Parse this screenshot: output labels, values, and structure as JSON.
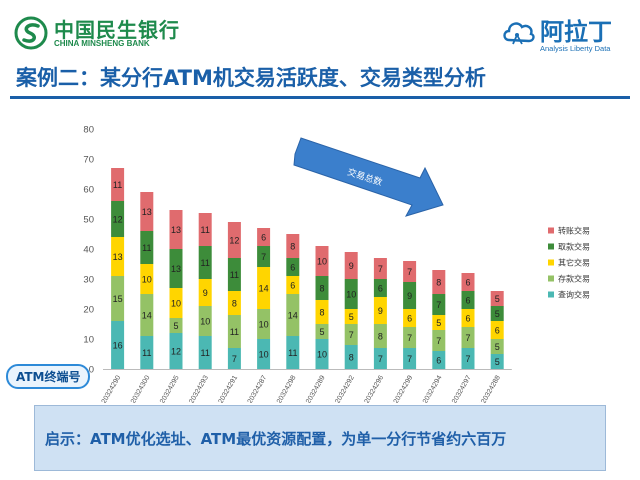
{
  "header": {
    "bank_name_cn": "中国民生银行",
    "bank_name_en": "CHINA MINSHENG BANK",
    "brand_name": "阿拉丁",
    "brand_sub": "Analysis Liberty Data",
    "page_title": "案例二：某分行ATM机交易活跃度、交易类型分析"
  },
  "colors": {
    "bank_green": "#1e8a4c",
    "brand_blue": "#1a6fb5",
    "title_blue": "#1a5fa8"
  },
  "chart_data": {
    "type": "bar",
    "stacked": true,
    "categories": [
      "120324290",
      "120324300",
      "120324295",
      "120324293",
      "120324291",
      "120324287",
      "120324298",
      "120324289",
      "120324292",
      "120324296",
      "120324299",
      "120324294",
      "120324297",
      "120324288"
    ],
    "series": [
      {
        "name": "查询交易",
        "color": "#4bb8b3",
        "values": [
          16,
          11,
          12,
          11,
          7,
          10,
          11,
          10,
          8,
          7,
          7,
          6,
          7,
          5
        ]
      },
      {
        "name": "存款交易",
        "color": "#94c266",
        "values": [
          15,
          14,
          5,
          10,
          11,
          10,
          14,
          5,
          7,
          8,
          7,
          7,
          7,
          5
        ]
      },
      {
        "name": "其它交易",
        "color": "#ffd500",
        "values": [
          13,
          10,
          10,
          9,
          8,
          14,
          6,
          8,
          5,
          9,
          6,
          5,
          6,
          6
        ]
      },
      {
        "name": "取款交易",
        "color": "#3d8c3a",
        "values": [
          12,
          11,
          13,
          11,
          11,
          7,
          6,
          8,
          10,
          6,
          9,
          7,
          6,
          5
        ]
      },
      {
        "name": "转账交易",
        "color": "#e06b6e",
        "values": [
          11,
          13,
          13,
          11,
          12,
          6,
          8,
          10,
          9,
          7,
          7,
          8,
          6,
          5
        ]
      }
    ],
    "ylim": [
      0,
      80
    ],
    "yticks": [
      0,
      10,
      20,
      30,
      40,
      50,
      60,
      70,
      80
    ],
    "legend_position": "right",
    "grid": false,
    "annotation": "交易总数",
    "x_tag": "ATM终端号"
  },
  "insight": "启示：ATM优化选址、ATM最优资源配置，为单一分行节省约六百万"
}
